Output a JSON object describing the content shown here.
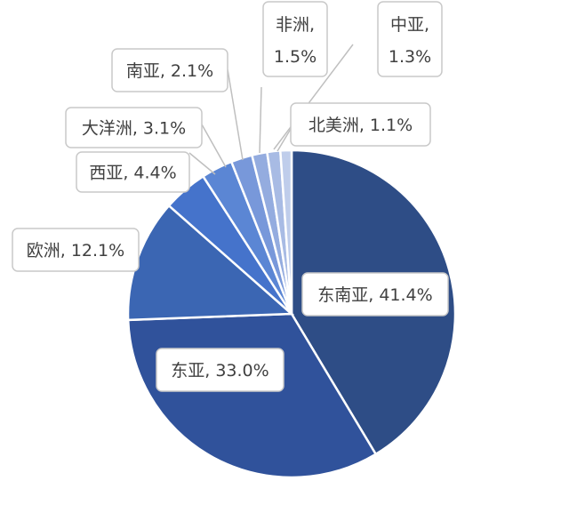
{
  "chart_data": {
    "type": "pie",
    "title": "",
    "series": [
      {
        "categories": [
          "东南亚",
          "东亚",
          "欧洲",
          "西亚",
          "大洋洲",
          "南亚",
          "非洲",
          "中亚",
          "北美洲"
        ],
        "values": [
          41.4,
          33.0,
          12.1,
          4.4,
          3.1,
          2.1,
          1.5,
          1.3,
          1.1
        ],
        "labels": [
          "东南亚, 41.4%",
          "东亚, 33.0%",
          "欧洲, 12.1%",
          "西亚, 4.4%",
          "大洋洲, 3.1%",
          "南亚, 2.1%",
          "非洲, 1.5%",
          "中亚, 1.3%",
          "北美洲, 1.1%"
        ],
        "colors": [
          "#2e4d86",
          "#30529b",
          "#3b66b3",
          "#4573cb",
          "#5b86d4",
          "#7898da",
          "#94acdf",
          "#a8bbe4",
          "#bfcdeb"
        ]
      }
    ]
  }
}
